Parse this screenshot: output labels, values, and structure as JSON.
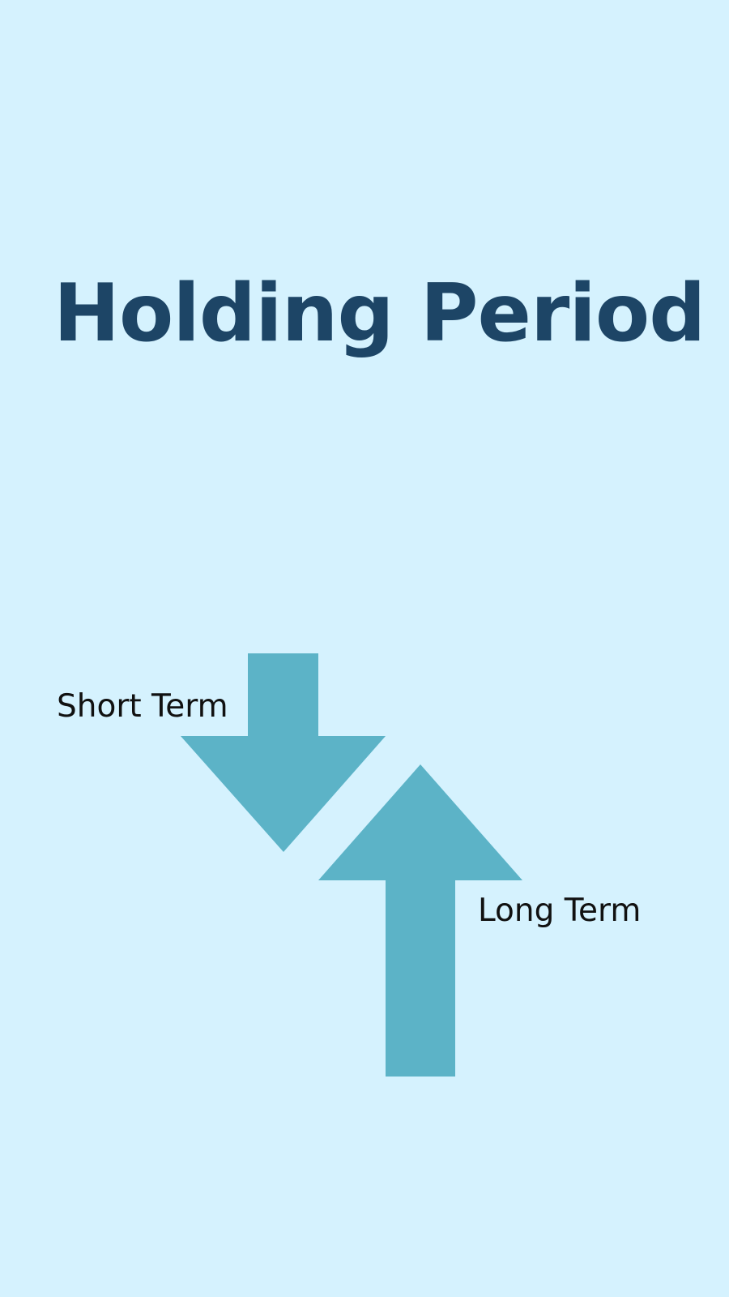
{
  "title": "Holding Period",
  "arrows": {
    "short": {
      "label": "Short Term",
      "direction": "down"
    },
    "long": {
      "label": "Long Term",
      "direction": "up"
    }
  },
  "colors": {
    "background": "#d5f2fe",
    "title": "#1d4566",
    "arrow": "#5cb3c7",
    "label": "#111111"
  }
}
